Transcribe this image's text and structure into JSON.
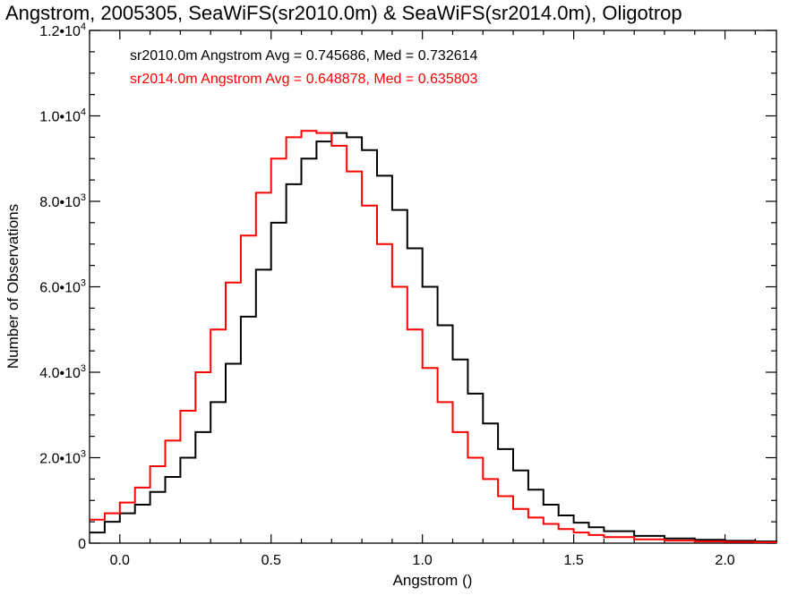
{
  "chart_data": {
    "type": "line",
    "step": true,
    "title": "Angstrom, 2005305, SeaWiFS(sr2010.0m) & SeaWiFS(sr2014.0m), Oligotrop",
    "xlabel": "Angstrom ()",
    "ylabel": "Number of Observations",
    "xlim": [
      -0.1,
      2.17
    ],
    "ylim": [
      0,
      12000
    ],
    "x_ticks": [
      {
        "value": 0.0,
        "label": "0.0"
      },
      {
        "value": 0.5,
        "label": "0.5"
      },
      {
        "value": 1.0,
        "label": "1.0"
      },
      {
        "value": 1.5,
        "label": "1.5"
      },
      {
        "value": 2.0,
        "label": "2.0"
      }
    ],
    "y_ticks": [
      {
        "value": 0,
        "mantissa": "0",
        "exp": ""
      },
      {
        "value": 2000,
        "mantissa": "2.0•10",
        "exp": "3"
      },
      {
        "value": 4000,
        "mantissa": "4.0•10",
        "exp": "3"
      },
      {
        "value": 6000,
        "mantissa": "6.0•10",
        "exp": "3"
      },
      {
        "value": 8000,
        "mantissa": "8.0•10",
        "exp": "3"
      },
      {
        "value": 10000,
        "mantissa": "1.0•10",
        "exp": "4"
      },
      {
        "value": 12000,
        "mantissa": "1.2•10",
        "exp": "4"
      }
    ],
    "grid": false,
    "legend_position": "top-left",
    "series": [
      {
        "name": "sr2010.0m",
        "color": "#000000",
        "annotation": "sr2010.0m Angstrom Avg = 0.745686, Med = 0.732614",
        "x": [
          -0.1,
          -0.05,
          0.0,
          0.05,
          0.1,
          0.15,
          0.2,
          0.25,
          0.3,
          0.35,
          0.4,
          0.45,
          0.5,
          0.55,
          0.6,
          0.65,
          0.7,
          0.75,
          0.8,
          0.85,
          0.9,
          0.95,
          1.0,
          1.05,
          1.1,
          1.15,
          1.2,
          1.25,
          1.3,
          1.35,
          1.4,
          1.45,
          1.5,
          1.55,
          1.6,
          1.7,
          1.8,
          1.9,
          2.0,
          2.1,
          2.17
        ],
        "values": [
          250,
          500,
          700,
          900,
          1200,
          1550,
          2000,
          2600,
          3300,
          4200,
          5300,
          6400,
          7500,
          8400,
          9000,
          9400,
          9600,
          9500,
          9200,
          8600,
          7800,
          6900,
          6000,
          5100,
          4300,
          3500,
          2800,
          2200,
          1700,
          1250,
          900,
          650,
          480,
          370,
          280,
          170,
          110,
          80,
          55,
          40,
          30
        ]
      },
      {
        "name": "sr2014.0m",
        "color": "#ff0000",
        "annotation": "sr2014.0m Angstrom Avg = 0.648878, Med = 0.635803",
        "x": [
          -0.1,
          -0.05,
          0.0,
          0.05,
          0.1,
          0.15,
          0.2,
          0.25,
          0.3,
          0.35,
          0.4,
          0.45,
          0.5,
          0.55,
          0.6,
          0.65,
          0.7,
          0.75,
          0.8,
          0.85,
          0.9,
          0.95,
          1.0,
          1.05,
          1.1,
          1.15,
          1.2,
          1.25,
          1.3,
          1.35,
          1.4,
          1.45,
          1.5,
          1.55,
          1.6,
          1.7,
          1.8,
          1.9,
          2.0,
          2.1,
          2.17
        ],
        "values": [
          550,
          700,
          950,
          1300,
          1800,
          2400,
          3100,
          4000,
          5000,
          6100,
          7200,
          8200,
          9000,
          9500,
          9650,
          9600,
          9300,
          8700,
          7900,
          7000,
          6000,
          5000,
          4100,
          3300,
          2600,
          2000,
          1500,
          1100,
          800,
          600,
          450,
          330,
          250,
          190,
          140,
          90,
          60,
          40,
          30,
          20,
          15
        ]
      }
    ]
  }
}
